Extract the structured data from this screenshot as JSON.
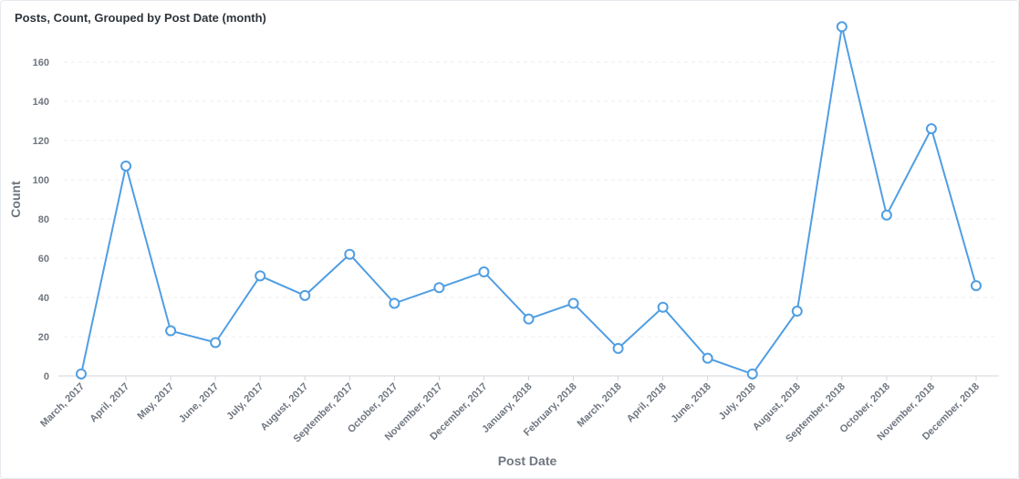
{
  "card": {
    "title": "Posts, Count, Grouped by Post Date (month)"
  },
  "chart_data": {
    "type": "line",
    "title": "Posts, Count, Grouped by Post Date (month)",
    "xlabel": "Post Date",
    "ylabel": "Count",
    "categories": [
      "March, 2017",
      "April, 2017",
      "May, 2017",
      "June, 2017",
      "July, 2017",
      "August, 2017",
      "September, 2017",
      "October, 2017",
      "November, 2017",
      "December, 2017",
      "January, 2018",
      "February, 2018",
      "March, 2018",
      "April, 2018",
      "June, 2018",
      "July, 2018",
      "August, 2018",
      "September, 2018",
      "October, 2018",
      "November, 2018",
      "December, 2018"
    ],
    "series": [
      {
        "name": "Count",
        "values": [
          1,
          107,
          23,
          17,
          51,
          41,
          62,
          37,
          45,
          53,
          29,
          37,
          14,
          35,
          9,
          1,
          33,
          178,
          82,
          126,
          46
        ],
        "color": "#509ee3"
      }
    ],
    "ylim": [
      0,
      180
    ],
    "yticks": [
      0,
      20,
      40,
      60,
      80,
      100,
      120,
      140,
      160
    ],
    "grid": true,
    "legend": "none"
  }
}
